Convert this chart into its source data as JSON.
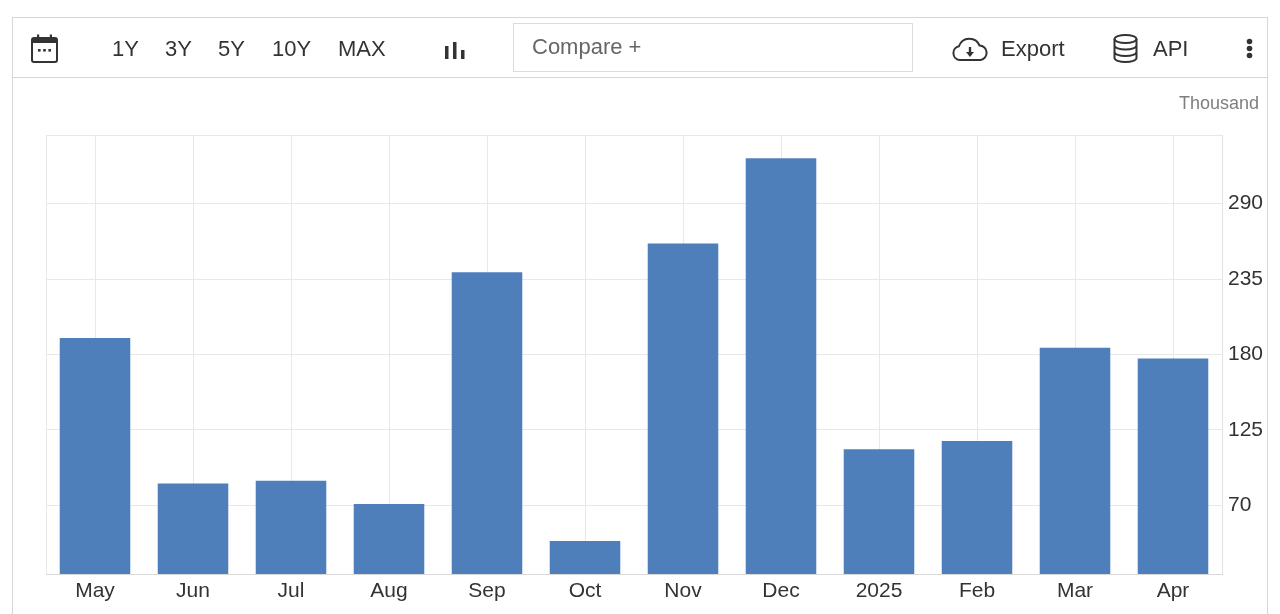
{
  "chart_data": {
    "type": "bar",
    "ylabel": "Thousand",
    "categories": [
      "May",
      "Jun",
      "Jul",
      "Aug",
      "Sep",
      "Oct",
      "Nov",
      "Dec",
      "2025",
      "Feb",
      "Mar",
      "Apr"
    ],
    "values": [
      192,
      86,
      88,
      71,
      240,
      44,
      261,
      323,
      111,
      117,
      185,
      177
    ],
    "color": "#4e7fbb",
    "ylim": [
      20,
      340
    ],
    "yticks": [
      70,
      125,
      180,
      235,
      290
    ],
    "grid": true,
    "annotations": [
      "1Y",
      "3Y",
      "5Y",
      "10Y",
      "MAX",
      "Compare +",
      "Export",
      "API"
    ]
  }
}
